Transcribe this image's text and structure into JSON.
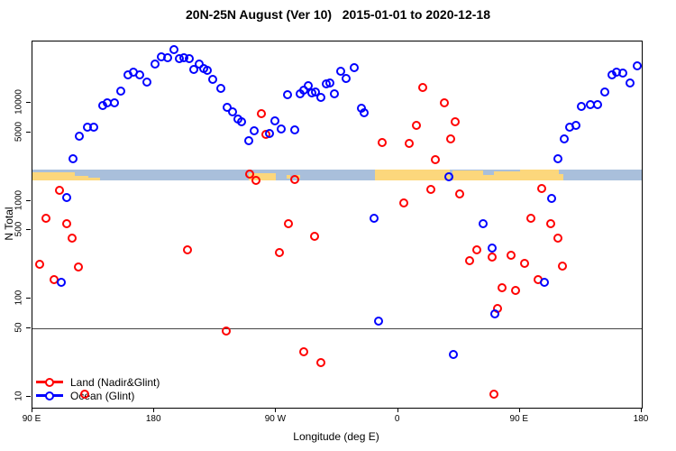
{
  "title": "20N-25N August (Ver 10)   2015-01-01 to 2020-12-18",
  "axes": {
    "x_label": "Longitude (deg E)",
    "y_label": "N Total"
  },
  "legend": {
    "items": [
      {
        "label": "Land (Nadir&Glint)",
        "color": "#ff0000"
      },
      {
        "label": "Ocean (Glint)",
        "color": "#0000ff"
      }
    ]
  },
  "chart_data": {
    "type": "scatter",
    "x_scale": "linear",
    "y_scale": "log",
    "xlim": [
      90,
      540
    ],
    "ylim": [
      7.8,
      42000
    ],
    "x_ticks": [
      {
        "pos": 90,
        "label": "90 E"
      },
      {
        "pos": 180,
        "label": "180"
      },
      {
        "pos": 270,
        "label": "90 W"
      },
      {
        "pos": 360,
        "label": "0"
      },
      {
        "pos": 450,
        "label": "90 E"
      },
      {
        "pos": 540,
        "label": "180"
      }
    ],
    "y_ticks": [
      {
        "pos": 10,
        "label": "10"
      },
      {
        "pos": 50,
        "label": "50"
      },
      {
        "pos": 100,
        "label": "100"
      },
      {
        "pos": 500,
        "label": "500"
      },
      {
        "pos": 1000,
        "label": "1000"
      },
      {
        "pos": 5000,
        "label": "5000"
      },
      {
        "pos": 10000,
        "label": "10000"
      }
    ],
    "reference_line_y": 50,
    "map_strip": {
      "n_top": 2100,
      "n_bottom": 1630,
      "ocean_color": "#a9bfdb",
      "land_color": "#fcd77c",
      "land_patches": [
        {
          "from": 90,
          "to": 121,
          "top": 0.3,
          "bot": 1
        },
        {
          "from": 121,
          "to": 131,
          "top": 0.65,
          "bot": 1
        },
        {
          "from": 131,
          "to": 140,
          "top": 0.82,
          "bot": 1
        },
        {
          "from": 250,
          "to": 270,
          "top": 0.35,
          "bot": 1
        },
        {
          "from": 277.5,
          "to": 280.5,
          "top": 0.5,
          "bot": 0.9
        },
        {
          "from": 284.5,
          "to": 287.5,
          "top": 0.5,
          "bot": 0.9
        },
        {
          "from": 343,
          "to": 398,
          "top": 0,
          "bot": 1
        },
        {
          "from": 400.5,
          "to": 423,
          "top": 0.12,
          "bot": 1
        },
        {
          "from": 423,
          "to": 431,
          "top": 0.55,
          "bot": 1
        },
        {
          "from": 431,
          "to": 450,
          "top": 0.18,
          "bot": 1
        },
        {
          "from": 450,
          "to": 479,
          "top": 0,
          "bot": 1
        },
        {
          "from": 479,
          "to": 482,
          "top": 0.45,
          "bot": 1
        }
      ]
    },
    "series": [
      {
        "name": "Land (Nadir&Glint)",
        "color": "#ff0000",
        "points": [
          [
            259.3,
            7750
          ],
          [
            262.4,
            4720
          ],
          [
            348.1,
            3910
          ],
          [
            378.1,
            14300
          ],
          [
            394.0,
            10000
          ],
          [
            402.2,
            6350
          ],
          [
            373.6,
            5830
          ],
          [
            398.9,
            4310
          ],
          [
            368.1,
            3820
          ],
          [
            387.4,
            2630
          ],
          [
            110.0,
            1280
          ],
          [
            100.0,
            664
          ],
          [
            115.1,
            587
          ],
          [
            119.5,
            413
          ],
          [
            204.3,
            318
          ],
          [
            95.5,
            226
          ],
          [
            124.0,
            211
          ],
          [
            106.2,
            159
          ],
          [
            250.4,
            1880
          ],
          [
            254.8,
            1630
          ],
          [
            283.9,
            1650
          ],
          [
            384.0,
            1310
          ],
          [
            405.8,
            1180
          ],
          [
            364.0,
            944
          ],
          [
            279.2,
            581
          ],
          [
            298.6,
            432
          ],
          [
            272.4,
            299
          ],
          [
            466.1,
            1330
          ],
          [
            457.9,
            664
          ],
          [
            472.8,
            587
          ],
          [
            477.9,
            413
          ],
          [
            418.0,
            318
          ],
          [
            412.9,
            243
          ],
          [
            443.3,
            280
          ],
          [
            453.5,
            231
          ],
          [
            481.7,
            214
          ],
          [
            429.5,
            270
          ],
          [
            463.3,
            159
          ],
          [
            436.7,
            129
          ],
          [
            446.9,
            122
          ],
          [
            433.3,
            80
          ],
          [
            233.2,
            47
          ],
          [
            290.2,
            29
          ],
          [
            303.1,
            22.5
          ],
          [
            430.6,
            10.7
          ],
          [
            128.4,
            10.7
          ]
        ]
      },
      {
        "name": "Ocean (Glint)",
        "color": "#0000ff",
        "points": [
          [
            120.0,
            2690
          ],
          [
            124.6,
            4560
          ],
          [
            130.6,
            5630
          ],
          [
            135.1,
            5630
          ],
          [
            141.7,
            9360
          ],
          [
            145.4,
            10000
          ],
          [
            150.4,
            9900
          ],
          [
            155.4,
            13100
          ],
          [
            160.4,
            19000
          ],
          [
            164.4,
            20400
          ],
          [
            169.2,
            19400
          ],
          [
            174.3,
            16300
          ],
          [
            180.3,
            24800
          ],
          [
            185.0,
            29600
          ],
          [
            189.9,
            28600
          ],
          [
            194.7,
            34800
          ],
          [
            198.3,
            28200
          ],
          [
            202.1,
            28600
          ],
          [
            205.8,
            28200
          ],
          [
            209.4,
            21900
          ],
          [
            213.2,
            24500
          ],
          [
            216.5,
            22300
          ],
          [
            219.3,
            21300
          ],
          [
            223.1,
            17400
          ],
          [
            229.1,
            14100
          ],
          [
            233.6,
            8910
          ],
          [
            237.6,
            8130
          ],
          [
            242.0,
            6860
          ],
          [
            244.6,
            6400
          ],
          [
            249.8,
            4100
          ],
          [
            253.6,
            5180
          ],
          [
            265.3,
            4830
          ],
          [
            269.1,
            6580
          ],
          [
            273.5,
            5430
          ],
          [
            283.7,
            5320
          ],
          [
            278.6,
            12100
          ],
          [
            287.5,
            12400
          ],
          [
            290.4,
            13300
          ],
          [
            293.5,
            14900
          ],
          [
            296.4,
            12700
          ],
          [
            299.2,
            12900
          ],
          [
            303.0,
            11300
          ],
          [
            306.8,
            15400
          ],
          [
            309.7,
            16000
          ],
          [
            313.0,
            12400
          ],
          [
            317.5,
            20800
          ],
          [
            321.5,
            17700
          ],
          [
            327.4,
            22800
          ],
          [
            333.0,
            8730
          ],
          [
            334.8,
            7910
          ],
          [
            342.5,
            667
          ],
          [
            345.8,
            59
          ],
          [
            397.3,
            1760
          ],
          [
            422.8,
            581
          ],
          [
            429.5,
            327
          ],
          [
            431.7,
            71
          ],
          [
            468.3,
            148
          ],
          [
            473.5,
            1060
          ],
          [
            477.9,
            2690
          ],
          [
            482.8,
            4310
          ],
          [
            486.8,
            5630
          ],
          [
            491.6,
            5830
          ],
          [
            495.6,
            9120
          ],
          [
            502.3,
            9570
          ],
          [
            507.2,
            9570
          ],
          [
            512.7,
            12900
          ],
          [
            517.9,
            19000
          ],
          [
            521.6,
            20400
          ],
          [
            526.1,
            20100
          ],
          [
            531.6,
            16000
          ],
          [
            536.5,
            23900
          ],
          [
            400.6,
            27
          ],
          [
            115.5,
            1070
          ],
          [
            111.1,
            147
          ]
        ]
      }
    ]
  }
}
